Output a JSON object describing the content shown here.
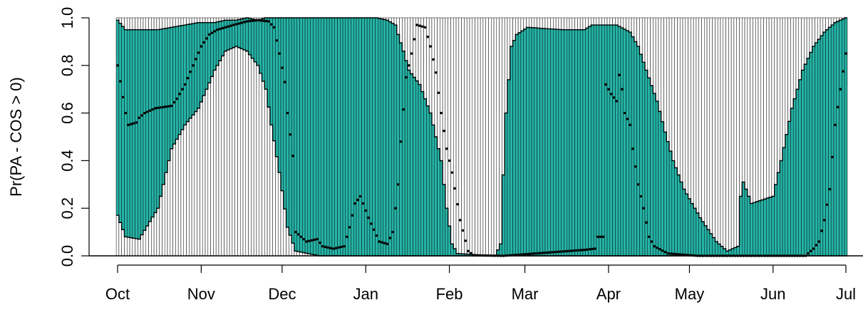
{
  "chart_data": {
    "type": "bar",
    "title": "",
    "xlabel": "",
    "ylabel": "Pr(PA - COS > 0)",
    "ylim": [
      0,
      1
    ],
    "yticks": [
      "0.0",
      "0.2",
      "0.4",
      "0.6",
      "0.8",
      "1.0"
    ],
    "months": [
      "Oct",
      "Nov",
      "Dec",
      "Jan",
      "Feb",
      "Mar",
      "Apr",
      "May",
      "Jun",
      "Jul"
    ],
    "x_range_days": [
      0,
      270
    ],
    "reference_line_y": 0,
    "colors": {
      "band_fill": "#26b3a6",
      "band_edge": "#000000",
      "background_bar": "#ffffff",
      "point": "#000000"
    },
    "series": [
      {
        "name": "",
        "kind": "band",
        "anchors": [
          [
            0,
            0.17,
            0.99
          ],
          [
            3,
            0.08,
            0.95
          ],
          [
            8,
            0.07,
            0.95
          ],
          [
            15,
            0.2,
            0.95
          ],
          [
            20,
            0.45,
            0.96
          ],
          [
            25,
            0.55,
            0.97
          ],
          [
            30,
            0.62,
            0.98
          ],
          [
            36,
            0.78,
            0.98
          ],
          [
            40,
            0.86,
            0.99
          ],
          [
            44,
            0.88,
            0.99
          ],
          [
            48,
            0.86,
            1.0
          ],
          [
            52,
            0.8,
            0.99
          ],
          [
            55,
            0.7,
            1.0
          ],
          [
            57,
            0.55,
            1.0
          ],
          [
            60,
            0.35,
            1.0
          ],
          [
            63,
            0.12,
            1.0
          ],
          [
            66,
            0.02,
            1.0
          ],
          [
            75,
            0.0,
            1.0
          ],
          [
            95,
            0.0,
            1.0
          ],
          [
            96,
            0.0,
            1.0
          ],
          [
            100,
            0.0,
            0.99
          ],
          [
            103,
            0.0,
            0.97
          ],
          [
            104,
            0.0,
            0.93
          ],
          [
            106,
            0.0,
            0.86
          ],
          [
            108,
            0.0,
            0.78
          ],
          [
            112,
            0.0,
            0.72
          ],
          [
            116,
            0.0,
            0.6
          ],
          [
            120,
            0.0,
            0.4
          ],
          [
            122,
            0.0,
            0.2
          ],
          [
            124,
            0.0,
            0.05
          ],
          [
            126,
            0.0,
            0.01
          ],
          [
            140,
            0.0,
            0.0
          ],
          [
            142,
            0.0,
            0.05
          ],
          [
            143,
            0.0,
            0.34
          ],
          [
            144,
            0.0,
            0.6
          ],
          [
            146,
            0.0,
            0.88
          ],
          [
            148,
            0.0,
            0.93
          ],
          [
            152,
            0.0,
            0.96
          ],
          [
            165,
            0.0,
            0.95
          ],
          [
            173,
            0.0,
            0.95
          ],
          [
            176,
            0.0,
            0.97
          ],
          [
            185,
            0.0,
            0.97
          ],
          [
            190,
            0.0,
            0.94
          ],
          [
            193,
            0.0,
            0.88
          ],
          [
            196,
            0.0,
            0.78
          ],
          [
            200,
            0.0,
            0.65
          ],
          [
            203,
            0.0,
            0.52
          ],
          [
            206,
            0.0,
            0.4
          ],
          [
            210,
            0.0,
            0.28
          ],
          [
            216,
            0.0,
            0.16
          ],
          [
            222,
            0.0,
            0.06
          ],
          [
            226,
            0.0,
            0.02
          ],
          [
            230,
            0.0,
            0.04
          ],
          [
            231,
            0.0,
            0.25
          ],
          [
            232,
            0.0,
            0.31
          ],
          [
            235,
            0.0,
            0.22
          ],
          [
            243,
            0.0,
            0.25
          ],
          [
            246,
            0.0,
            0.4
          ],
          [
            250,
            0.0,
            0.62
          ],
          [
            254,
            0.0,
            0.78
          ],
          [
            258,
            0.0,
            0.88
          ],
          [
            262,
            0.0,
            0.94
          ],
          [
            266,
            0.0,
            0.98
          ],
          [
            270,
            0.0,
            1.0
          ]
        ]
      },
      {
        "name": "",
        "kind": "points",
        "anchors": [
          [
            0,
            0.8
          ],
          [
            3,
            0.6
          ],
          [
            4,
            0.55
          ],
          [
            7,
            0.56
          ],
          [
            8,
            0.58
          ],
          [
            10,
            0.6
          ],
          [
            14,
            0.62
          ],
          [
            20,
            0.63
          ],
          [
            22,
            0.66
          ],
          [
            25,
            0.72
          ],
          [
            28,
            0.8
          ],
          [
            31,
            0.88
          ],
          [
            34,
            0.93
          ],
          [
            37,
            0.95
          ],
          [
            43,
            0.97
          ],
          [
            48,
            0.985
          ],
          [
            52,
            0.99
          ],
          [
            56,
            0.985
          ],
          [
            58,
            0.96
          ],
          [
            60,
            0.85
          ],
          [
            62,
            0.73
          ],
          [
            63,
            0.6
          ],
          [
            65,
            0.42
          ],
          [
            66,
            0.1
          ],
          [
            70,
            0.06
          ],
          [
            74,
            0.07
          ],
          [
            76,
            0.04
          ],
          [
            80,
            0.03
          ],
          [
            84,
            0.04
          ],
          [
            86,
            0.12
          ],
          [
            88,
            0.22
          ],
          [
            90,
            0.25
          ],
          [
            93,
            0.16
          ],
          [
            97,
            0.06
          ],
          [
            100,
            0.05
          ],
          [
            102,
            0.1
          ],
          [
            104,
            0.3
          ],
          [
            105,
            0.48
          ],
          [
            107,
            0.75
          ],
          [
            109,
            0.85
          ],
          [
            111,
            0.97
          ],
          [
            114,
            0.96
          ],
          [
            116,
            0.88
          ],
          [
            118,
            0.77
          ],
          [
            120,
            0.6
          ],
          [
            122,
            0.45
          ],
          [
            124,
            0.35
          ],
          [
            127,
            0.15
          ],
          [
            130,
            0.02
          ],
          [
            132,
            0.002
          ],
          [
            143,
            0.0
          ],
          [
            173,
            0.025
          ],
          [
            177,
            0.03
          ],
          [
            178,
            0.08
          ],
          [
            180,
            0.08
          ],
          [
            181,
            0.72
          ],
          [
            183,
            0.68
          ],
          [
            185,
            0.65
          ],
          [
            186,
            0.76
          ],
          [
            187,
            0.7
          ],
          [
            188,
            0.6
          ],
          [
            190,
            0.55
          ],
          [
            191,
            0.45
          ],
          [
            193,
            0.3
          ],
          [
            195,
            0.2
          ],
          [
            197,
            0.08
          ],
          [
            199,
            0.04
          ],
          [
            204,
            0.01
          ],
          [
            215,
            0.0
          ],
          [
            255,
            0.0
          ],
          [
            258,
            0.03
          ],
          [
            260,
            0.06
          ],
          [
            262,
            0.15
          ],
          [
            264,
            0.28
          ],
          [
            266,
            0.55
          ],
          [
            268,
            0.7
          ],
          [
            270,
            0.85
          ]
        ]
      }
    ]
  }
}
